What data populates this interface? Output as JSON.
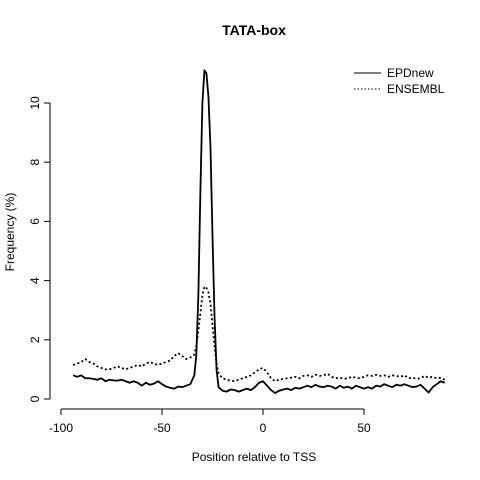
{
  "chart_data": {
    "type": "line",
    "title": "TATA-box",
    "xlabel": "Position relative to TSS",
    "ylabel": "Frequency (%)",
    "xlim": [
      -100,
      100
    ],
    "ylim": [
      0,
      11
    ],
    "xticks": [
      -100,
      -50,
      0,
      50
    ],
    "yticks": [
      0,
      2,
      4,
      6,
      8,
      10
    ],
    "legend_position": "top-right",
    "grid": false,
    "series": [
      {
        "name": "EPDnew",
        "line_style": "solid",
        "color": "#000000",
        "points": [
          [
            -94,
            0.8
          ],
          [
            -92,
            0.75
          ],
          [
            -90,
            0.8
          ],
          [
            -88,
            0.7
          ],
          [
            -86,
            0.7
          ],
          [
            -84,
            0.68
          ],
          [
            -82,
            0.65
          ],
          [
            -80,
            0.7
          ],
          [
            -78,
            0.6
          ],
          [
            -76,
            0.65
          ],
          [
            -74,
            0.63
          ],
          [
            -72,
            0.62
          ],
          [
            -70,
            0.65
          ],
          [
            -68,
            0.6
          ],
          [
            -66,
            0.55
          ],
          [
            -64,
            0.6
          ],
          [
            -62,
            0.55
          ],
          [
            -60,
            0.45
          ],
          [
            -58,
            0.55
          ],
          [
            -56,
            0.48
          ],
          [
            -54,
            0.52
          ],
          [
            -52,
            0.6
          ],
          [
            -50,
            0.5
          ],
          [
            -48,
            0.42
          ],
          [
            -46,
            0.38
          ],
          [
            -44,
            0.35
          ],
          [
            -42,
            0.42
          ],
          [
            -40,
            0.4
          ],
          [
            -38,
            0.45
          ],
          [
            -36,
            0.5
          ],
          [
            -34,
            0.8
          ],
          [
            -33,
            1.5
          ],
          [
            -32,
            3.5
          ],
          [
            -31,
            7.0
          ],
          [
            -30,
            10.0
          ],
          [
            -29,
            11.1
          ],
          [
            -28,
            11.0
          ],
          [
            -27,
            10.2
          ],
          [
            -26,
            8.5
          ],
          [
            -25,
            5.5
          ],
          [
            -24,
            2.8
          ],
          [
            -23,
            1.0
          ],
          [
            -22,
            0.4
          ],
          [
            -20,
            0.28
          ],
          [
            -18,
            0.25
          ],
          [
            -16,
            0.32
          ],
          [
            -14,
            0.3
          ],
          [
            -12,
            0.25
          ],
          [
            -10,
            0.3
          ],
          [
            -8,
            0.35
          ],
          [
            -6,
            0.3
          ],
          [
            -4,
            0.4
          ],
          [
            -2,
            0.55
          ],
          [
            0,
            0.6
          ],
          [
            2,
            0.45
          ],
          [
            4,
            0.3
          ],
          [
            6,
            0.2
          ],
          [
            8,
            0.28
          ],
          [
            10,
            0.32
          ],
          [
            12,
            0.35
          ],
          [
            14,
            0.3
          ],
          [
            16,
            0.38
          ],
          [
            18,
            0.35
          ],
          [
            20,
            0.4
          ],
          [
            22,
            0.45
          ],
          [
            24,
            0.4
          ],
          [
            26,
            0.48
          ],
          [
            28,
            0.42
          ],
          [
            30,
            0.4
          ],
          [
            32,
            0.45
          ],
          [
            34,
            0.42
          ],
          [
            36,
            0.35
          ],
          [
            38,
            0.45
          ],
          [
            40,
            0.38
          ],
          [
            42,
            0.42
          ],
          [
            44,
            0.35
          ],
          [
            46,
            0.45
          ],
          [
            48,
            0.4
          ],
          [
            50,
            0.35
          ],
          [
            52,
            0.4
          ],
          [
            54,
            0.35
          ],
          [
            56,
            0.45
          ],
          [
            58,
            0.42
          ],
          [
            60,
            0.5
          ],
          [
            62,
            0.45
          ],
          [
            64,
            0.4
          ],
          [
            66,
            0.48
          ],
          [
            68,
            0.45
          ],
          [
            70,
            0.5
          ],
          [
            72,
            0.45
          ],
          [
            74,
            0.4
          ],
          [
            76,
            0.42
          ],
          [
            78,
            0.48
          ],
          [
            80,
            0.35
          ],
          [
            82,
            0.22
          ],
          [
            84,
            0.4
          ],
          [
            86,
            0.5
          ],
          [
            88,
            0.6
          ],
          [
            90,
            0.55
          ]
        ]
      },
      {
        "name": "ENSEMBL",
        "line_style": "dotted",
        "color": "#000000",
        "points": [
          [
            -94,
            1.15
          ],
          [
            -92,
            1.2
          ],
          [
            -90,
            1.25
          ],
          [
            -88,
            1.35
          ],
          [
            -86,
            1.25
          ],
          [
            -84,
            1.2
          ],
          [
            -82,
            1.1
          ],
          [
            -80,
            1.05
          ],
          [
            -78,
            1.0
          ],
          [
            -76,
            1.0
          ],
          [
            -74,
            1.05
          ],
          [
            -72,
            1.1
          ],
          [
            -70,
            1.05
          ],
          [
            -68,
            1.0
          ],
          [
            -66,
            1.05
          ],
          [
            -64,
            1.1
          ],
          [
            -62,
            1.15
          ],
          [
            -60,
            1.1
          ],
          [
            -58,
            1.2
          ],
          [
            -56,
            1.25
          ],
          [
            -54,
            1.2
          ],
          [
            -52,
            1.15
          ],
          [
            -50,
            1.2
          ],
          [
            -48,
            1.25
          ],
          [
            -46,
            1.3
          ],
          [
            -44,
            1.45
          ],
          [
            -42,
            1.55
          ],
          [
            -40,
            1.45
          ],
          [
            -38,
            1.35
          ],
          [
            -36,
            1.4
          ],
          [
            -34,
            1.5
          ],
          [
            -33,
            1.8
          ],
          [
            -32,
            2.3
          ],
          [
            -31,
            2.9
          ],
          [
            -30,
            3.5
          ],
          [
            -29,
            3.8
          ],
          [
            -28,
            3.75
          ],
          [
            -27,
            3.6
          ],
          [
            -26,
            3.2
          ],
          [
            -25,
            2.5
          ],
          [
            -24,
            1.8
          ],
          [
            -23,
            1.2
          ],
          [
            -22,
            0.85
          ],
          [
            -20,
            0.7
          ],
          [
            -18,
            0.65
          ],
          [
            -16,
            0.62
          ],
          [
            -14,
            0.6
          ],
          [
            -12,
            0.65
          ],
          [
            -10,
            0.7
          ],
          [
            -8,
            0.75
          ],
          [
            -6,
            0.8
          ],
          [
            -4,
            0.9
          ],
          [
            -2,
            1.0
          ],
          [
            0,
            1.05
          ],
          [
            2,
            0.9
          ],
          [
            4,
            0.7
          ],
          [
            6,
            0.6
          ],
          [
            8,
            0.65
          ],
          [
            10,
            0.68
          ],
          [
            12,
            0.7
          ],
          [
            14,
            0.72
          ],
          [
            16,
            0.75
          ],
          [
            18,
            0.7
          ],
          [
            20,
            0.78
          ],
          [
            22,
            0.8
          ],
          [
            24,
            0.75
          ],
          [
            26,
            0.82
          ],
          [
            28,
            0.78
          ],
          [
            30,
            0.8
          ],
          [
            32,
            0.85
          ],
          [
            34,
            0.75
          ],
          [
            36,
            0.7
          ],
          [
            38,
            0.72
          ],
          [
            40,
            0.68
          ],
          [
            42,
            0.7
          ],
          [
            44,
            0.75
          ],
          [
            46,
            0.72
          ],
          [
            48,
            0.7
          ],
          [
            50,
            0.75
          ],
          [
            52,
            0.8
          ],
          [
            54,
            0.78
          ],
          [
            56,
            0.82
          ],
          [
            58,
            0.78
          ],
          [
            60,
            0.8
          ],
          [
            62,
            0.75
          ],
          [
            64,
            0.8
          ],
          [
            66,
            0.78
          ],
          [
            68,
            0.75
          ],
          [
            70,
            0.8
          ],
          [
            72,
            0.7
          ],
          [
            74,
            0.72
          ],
          [
            76,
            0.68
          ],
          [
            78,
            0.7
          ],
          [
            80,
            0.78
          ],
          [
            82,
            0.72
          ],
          [
            84,
            0.75
          ],
          [
            86,
            0.7
          ],
          [
            88,
            0.72
          ],
          [
            90,
            0.65
          ]
        ]
      }
    ]
  }
}
